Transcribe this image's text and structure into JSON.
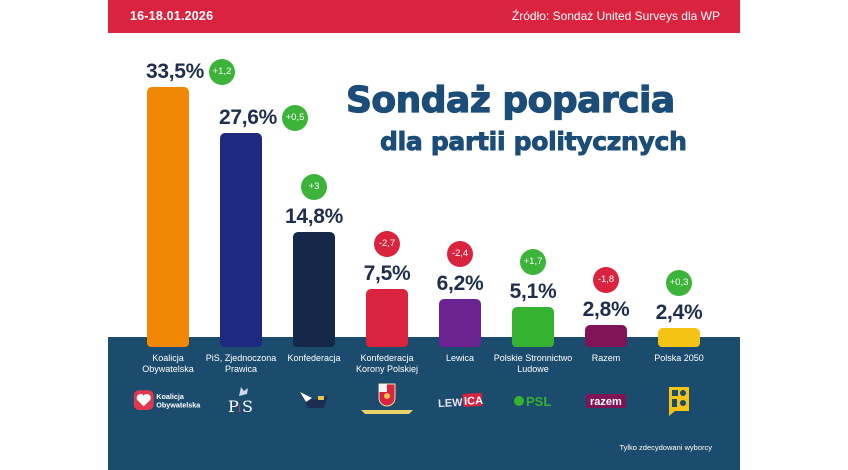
{
  "header": {
    "date": "16-18.01.2026",
    "source": "Źródło:  Sondaż United Surveys dla WP",
    "background": "#d9233f"
  },
  "title": {
    "line1": "Sondaż poparcia",
    "line2": "dla partii politycznych",
    "color": "#1b4d78"
  },
  "footnote": "Tylko zdecydowani wyborcy",
  "chart_data": {
    "type": "bar",
    "title": "Sondaż poparcia dla partii politycznych",
    "subtitle": "16-18.01.2026",
    "source": "Źródło: Sondaż United Surveys dla WP",
    "xlabel": "",
    "ylabel": "",
    "ylim": [
      0,
      35
    ],
    "grid": false,
    "unit": "%",
    "categories": [
      "Koalicja Obywatelska",
      "PiS, Zjednoczona Prawica",
      "Konfederacja",
      "Konfederacja Korony Polskiej",
      "Lewica",
      "Polskie Stronnictwo Ludowe",
      "Razem",
      "Polska 2050"
    ],
    "values": [
      33.5,
      27.6,
      14.8,
      7.5,
      6.2,
      5.1,
      2.8,
      2.4
    ],
    "value_labels": [
      "33,5%",
      "27,6%",
      "14,8%",
      "7,5%",
      "6,2%",
      "5,1%",
      "2,8%",
      "2,4%"
    ],
    "changes": [
      1.2,
      0.5,
      3,
      -2.7,
      -2.4,
      1.7,
      -1.8,
      0.3
    ],
    "change_labels": [
      "+1,2",
      "+0,5",
      "+3",
      "-2,7",
      "-2,4",
      "+1,7",
      "-1,8",
      "+0,3"
    ],
    "label_lines": [
      [
        "Koalicja",
        "Obywatelska"
      ],
      [
        "PiS, Zjednoczona",
        "Prawica"
      ],
      [
        "Konfederacja"
      ],
      [
        "Konfederacja",
        "Korony Polskiej"
      ],
      [
        "Lewica"
      ],
      [
        "Polskie Stronnictwo",
        "Ludowe"
      ],
      [
        "Razem"
      ],
      [
        "Polska 2050"
      ]
    ],
    "colors": [
      "#f28705",
      "#1d2a80",
      "#16284a",
      "#d9233f",
      "#6a2390",
      "#35b22f",
      "#7f1457",
      "#f5c313"
    ],
    "change_colors": {
      "up": "#3cb43a",
      "down": "#d9233f"
    },
    "logos": [
      "Koalicja Obywatelska",
      "PiS",
      "Konfederacja",
      "Konfederacja Korony Polskiej",
      "LEWICA",
      "PSL",
      "razem",
      "2050"
    ]
  }
}
